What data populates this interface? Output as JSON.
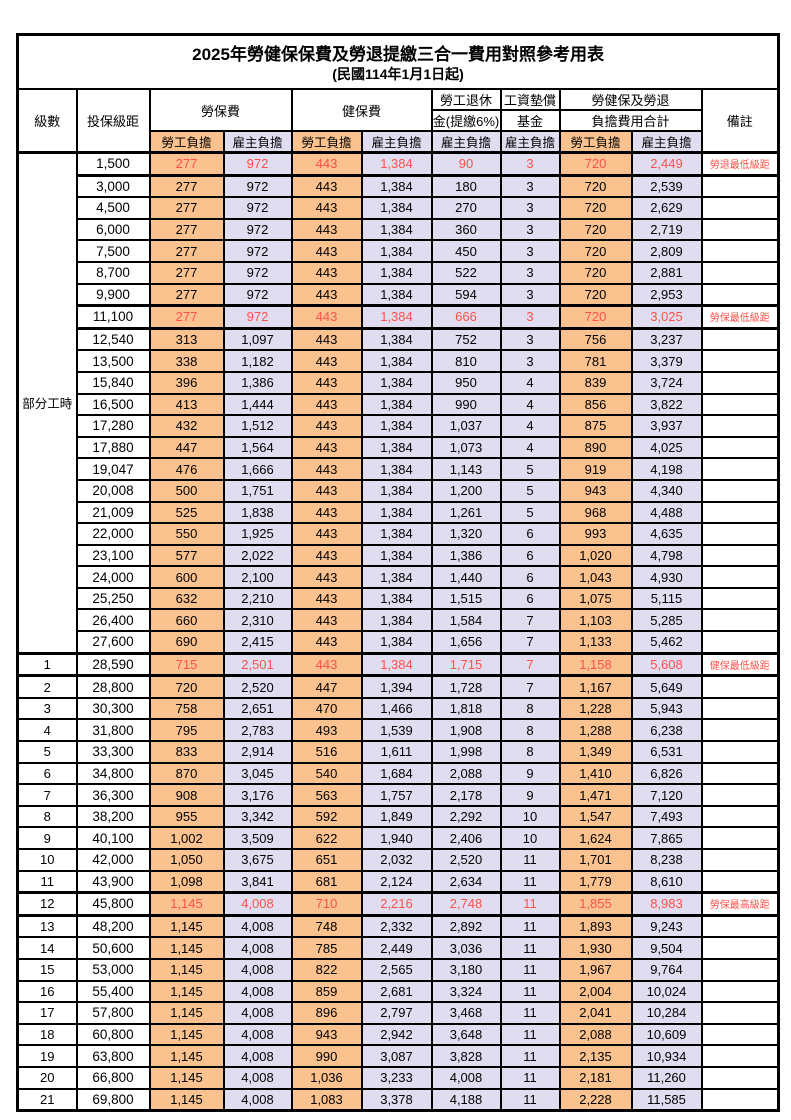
{
  "title": {
    "main": "2025年勞健保保費及勞退提繳三合一費用對照參考用表",
    "sub": "(民國114年1月1日起)"
  },
  "header": {
    "level": "級數",
    "bracket": "投保級距",
    "labor_fee": "勞保費",
    "health_fee": "健保費",
    "pension_line1": "勞工退休",
    "pension_line2": "金(提繳6%)",
    "wage_fund_line1": "工資墊償",
    "wage_fund_line2": "基金",
    "total_line1": "勞健保及勞退",
    "total_line2": "負擔費用合計",
    "remark": "備註",
    "employee_share": "勞工負擔",
    "employer_share": "雇主負擔"
  },
  "part_time_label": "部分工時",
  "part_time_rowspan": 23,
  "colors": {
    "employee_bg": "#FAC28E",
    "employer_bg": "#E0DDF1",
    "highlight_text": "#FF5148",
    "border": "#000000"
  },
  "rows": [
    {
      "level": "",
      "bracket": "1,500",
      "values": [
        "277",
        "972",
        "443",
        "1,384",
        "90",
        "3",
        "720",
        "2,449"
      ],
      "remark": "勞退最低級距",
      "highlight": true
    },
    {
      "level": "",
      "bracket": "3,000",
      "values": [
        "277",
        "972",
        "443",
        "1,384",
        "180",
        "3",
        "720",
        "2,539"
      ],
      "remark": "",
      "highlight": false
    },
    {
      "level": "",
      "bracket": "4,500",
      "values": [
        "277",
        "972",
        "443",
        "1,384",
        "270",
        "3",
        "720",
        "2,629"
      ],
      "remark": "",
      "highlight": false
    },
    {
      "level": "",
      "bracket": "6,000",
      "values": [
        "277",
        "972",
        "443",
        "1,384",
        "360",
        "3",
        "720",
        "2,719"
      ],
      "remark": "",
      "highlight": false
    },
    {
      "level": "",
      "bracket": "7,500",
      "values": [
        "277",
        "972",
        "443",
        "1,384",
        "450",
        "3",
        "720",
        "2,809"
      ],
      "remark": "",
      "highlight": false
    },
    {
      "level": "",
      "bracket": "8,700",
      "values": [
        "277",
        "972",
        "443",
        "1,384",
        "522",
        "3",
        "720",
        "2,881"
      ],
      "remark": "",
      "highlight": false
    },
    {
      "level": "",
      "bracket": "9,900",
      "values": [
        "277",
        "972",
        "443",
        "1,384",
        "594",
        "3",
        "720",
        "2,953"
      ],
      "remark": "",
      "highlight": false
    },
    {
      "level": "",
      "bracket": "11,100",
      "values": [
        "277",
        "972",
        "443",
        "1,384",
        "666",
        "3",
        "720",
        "3,025"
      ],
      "remark": "勞保最低級距",
      "highlight": true
    },
    {
      "level": "",
      "bracket": "12,540",
      "values": [
        "313",
        "1,097",
        "443",
        "1,384",
        "752",
        "3",
        "756",
        "3,237"
      ],
      "remark": "",
      "highlight": false
    },
    {
      "level": "",
      "bracket": "13,500",
      "values": [
        "338",
        "1,182",
        "443",
        "1,384",
        "810",
        "3",
        "781",
        "3,379"
      ],
      "remark": "",
      "highlight": false
    },
    {
      "level": "",
      "bracket": "15,840",
      "values": [
        "396",
        "1,386",
        "443",
        "1,384",
        "950",
        "4",
        "839",
        "3,724"
      ],
      "remark": "",
      "highlight": false
    },
    {
      "level": "",
      "bracket": "16,500",
      "values": [
        "413",
        "1,444",
        "443",
        "1,384",
        "990",
        "4",
        "856",
        "3,822"
      ],
      "remark": "",
      "highlight": false
    },
    {
      "level": "",
      "bracket": "17,280",
      "values": [
        "432",
        "1,512",
        "443",
        "1,384",
        "1,037",
        "4",
        "875",
        "3,937"
      ],
      "remark": "",
      "highlight": false
    },
    {
      "level": "",
      "bracket": "17,880",
      "values": [
        "447",
        "1,564",
        "443",
        "1,384",
        "1,073",
        "4",
        "890",
        "4,025"
      ],
      "remark": "",
      "highlight": false
    },
    {
      "level": "",
      "bracket": "19,047",
      "values": [
        "476",
        "1,666",
        "443",
        "1,384",
        "1,143",
        "5",
        "919",
        "4,198"
      ],
      "remark": "",
      "highlight": false
    },
    {
      "level": "",
      "bracket": "20,008",
      "values": [
        "500",
        "1,751",
        "443",
        "1,384",
        "1,200",
        "5",
        "943",
        "4,340"
      ],
      "remark": "",
      "highlight": false
    },
    {
      "level": "",
      "bracket": "21,009",
      "values": [
        "525",
        "1,838",
        "443",
        "1,384",
        "1,261",
        "5",
        "968",
        "4,488"
      ],
      "remark": "",
      "highlight": false
    },
    {
      "level": "",
      "bracket": "22,000",
      "values": [
        "550",
        "1,925",
        "443",
        "1,384",
        "1,320",
        "6",
        "993",
        "4,635"
      ],
      "remark": "",
      "highlight": false
    },
    {
      "level": "",
      "bracket": "23,100",
      "values": [
        "577",
        "2,022",
        "443",
        "1,384",
        "1,386",
        "6",
        "1,020",
        "4,798"
      ],
      "remark": "",
      "highlight": false
    },
    {
      "level": "",
      "bracket": "24,000",
      "values": [
        "600",
        "2,100",
        "443",
        "1,384",
        "1,440",
        "6",
        "1,043",
        "4,930"
      ],
      "remark": "",
      "highlight": false
    },
    {
      "level": "",
      "bracket": "25,250",
      "values": [
        "632",
        "2,210",
        "443",
        "1,384",
        "1,515",
        "6",
        "1,075",
        "5,115"
      ],
      "remark": "",
      "highlight": false
    },
    {
      "level": "",
      "bracket": "26,400",
      "values": [
        "660",
        "2,310",
        "443",
        "1,384",
        "1,584",
        "7",
        "1,103",
        "5,285"
      ],
      "remark": "",
      "highlight": false
    },
    {
      "level": "",
      "bracket": "27,600",
      "values": [
        "690",
        "2,415",
        "443",
        "1,384",
        "1,656",
        "7",
        "1,133",
        "5,462"
      ],
      "remark": "",
      "highlight": false
    },
    {
      "level": "1",
      "bracket": "28,590",
      "values": [
        "715",
        "2,501",
        "443",
        "1,384",
        "1,715",
        "7",
        "1,158",
        "5,608"
      ],
      "remark": "健保最低級距",
      "highlight": true
    },
    {
      "level": "2",
      "bracket": "28,800",
      "values": [
        "720",
        "2,520",
        "447",
        "1,394",
        "1,728",
        "7",
        "1,167",
        "5,649"
      ],
      "remark": "",
      "highlight": false
    },
    {
      "level": "3",
      "bracket": "30,300",
      "values": [
        "758",
        "2,651",
        "470",
        "1,466",
        "1,818",
        "8",
        "1,228",
        "5,943"
      ],
      "remark": "",
      "highlight": false
    },
    {
      "level": "4",
      "bracket": "31,800",
      "values": [
        "795",
        "2,783",
        "493",
        "1,539",
        "1,908",
        "8",
        "1,288",
        "6,238"
      ],
      "remark": "",
      "highlight": false
    },
    {
      "level": "5",
      "bracket": "33,300",
      "values": [
        "833",
        "2,914",
        "516",
        "1,611",
        "1,998",
        "8",
        "1,349",
        "6,531"
      ],
      "remark": "",
      "highlight": false
    },
    {
      "level": "6",
      "bracket": "34,800",
      "values": [
        "870",
        "3,045",
        "540",
        "1,684",
        "2,088",
        "9",
        "1,410",
        "6,826"
      ],
      "remark": "",
      "highlight": false
    },
    {
      "level": "7",
      "bracket": "36,300",
      "values": [
        "908",
        "3,176",
        "563",
        "1,757",
        "2,178",
        "9",
        "1,471",
        "7,120"
      ],
      "remark": "",
      "highlight": false
    },
    {
      "level": "8",
      "bracket": "38,200",
      "values": [
        "955",
        "3,342",
        "592",
        "1,849",
        "2,292",
        "10",
        "1,547",
        "7,493"
      ],
      "remark": "",
      "highlight": false
    },
    {
      "level": "9",
      "bracket": "40,100",
      "values": [
        "1,002",
        "3,509",
        "622",
        "1,940",
        "2,406",
        "10",
        "1,624",
        "7,865"
      ],
      "remark": "",
      "highlight": false
    },
    {
      "level": "10",
      "bracket": "42,000",
      "values": [
        "1,050",
        "3,675",
        "651",
        "2,032",
        "2,520",
        "11",
        "1,701",
        "8,238"
      ],
      "remark": "",
      "highlight": false
    },
    {
      "level": "11",
      "bracket": "43,900",
      "values": [
        "1,098",
        "3,841",
        "681",
        "2,124",
        "2,634",
        "11",
        "1,779",
        "8,610"
      ],
      "remark": "",
      "highlight": false
    },
    {
      "level": "12",
      "bracket": "45,800",
      "values": [
        "1,145",
        "4,008",
        "710",
        "2,216",
        "2,748",
        "11",
        "1,855",
        "8,983"
      ],
      "remark": "勞保最高級距",
      "highlight": true
    },
    {
      "level": "13",
      "bracket": "48,200",
      "values": [
        "1,145",
        "4,008",
        "748",
        "2,332",
        "2,892",
        "11",
        "1,893",
        "9,243"
      ],
      "remark": "",
      "highlight": false
    },
    {
      "level": "14",
      "bracket": "50,600",
      "values": [
        "1,145",
        "4,008",
        "785",
        "2,449",
        "3,036",
        "11",
        "1,930",
        "9,504"
      ],
      "remark": "",
      "highlight": false
    },
    {
      "level": "15",
      "bracket": "53,000",
      "values": [
        "1,145",
        "4,008",
        "822",
        "2,565",
        "3,180",
        "11",
        "1,967",
        "9,764"
      ],
      "remark": "",
      "highlight": false
    },
    {
      "level": "16",
      "bracket": "55,400",
      "values": [
        "1,145",
        "4,008",
        "859",
        "2,681",
        "3,324",
        "11",
        "2,004",
        "10,024"
      ],
      "remark": "",
      "highlight": false
    },
    {
      "level": "17",
      "bracket": "57,800",
      "values": [
        "1,145",
        "4,008",
        "896",
        "2,797",
        "3,468",
        "11",
        "2,041",
        "10,284"
      ],
      "remark": "",
      "highlight": false
    },
    {
      "level": "18",
      "bracket": "60,800",
      "values": [
        "1,145",
        "4,008",
        "943",
        "2,942",
        "3,648",
        "11",
        "2,088",
        "10,609"
      ],
      "remark": "",
      "highlight": false
    },
    {
      "level": "19",
      "bracket": "63,800",
      "values": [
        "1,145",
        "4,008",
        "990",
        "3,087",
        "3,828",
        "11",
        "2,135",
        "10,934"
      ],
      "remark": "",
      "highlight": false
    },
    {
      "level": "20",
      "bracket": "66,800",
      "values": [
        "1,145",
        "4,008",
        "1,036",
        "3,233",
        "4,008",
        "11",
        "2,181",
        "11,260"
      ],
      "remark": "",
      "highlight": false
    },
    {
      "level": "21",
      "bracket": "69,800",
      "values": [
        "1,145",
        "4,008",
        "1,083",
        "3,378",
        "4,188",
        "11",
        "2,228",
        "11,585"
      ],
      "remark": "",
      "highlight": false
    }
  ]
}
